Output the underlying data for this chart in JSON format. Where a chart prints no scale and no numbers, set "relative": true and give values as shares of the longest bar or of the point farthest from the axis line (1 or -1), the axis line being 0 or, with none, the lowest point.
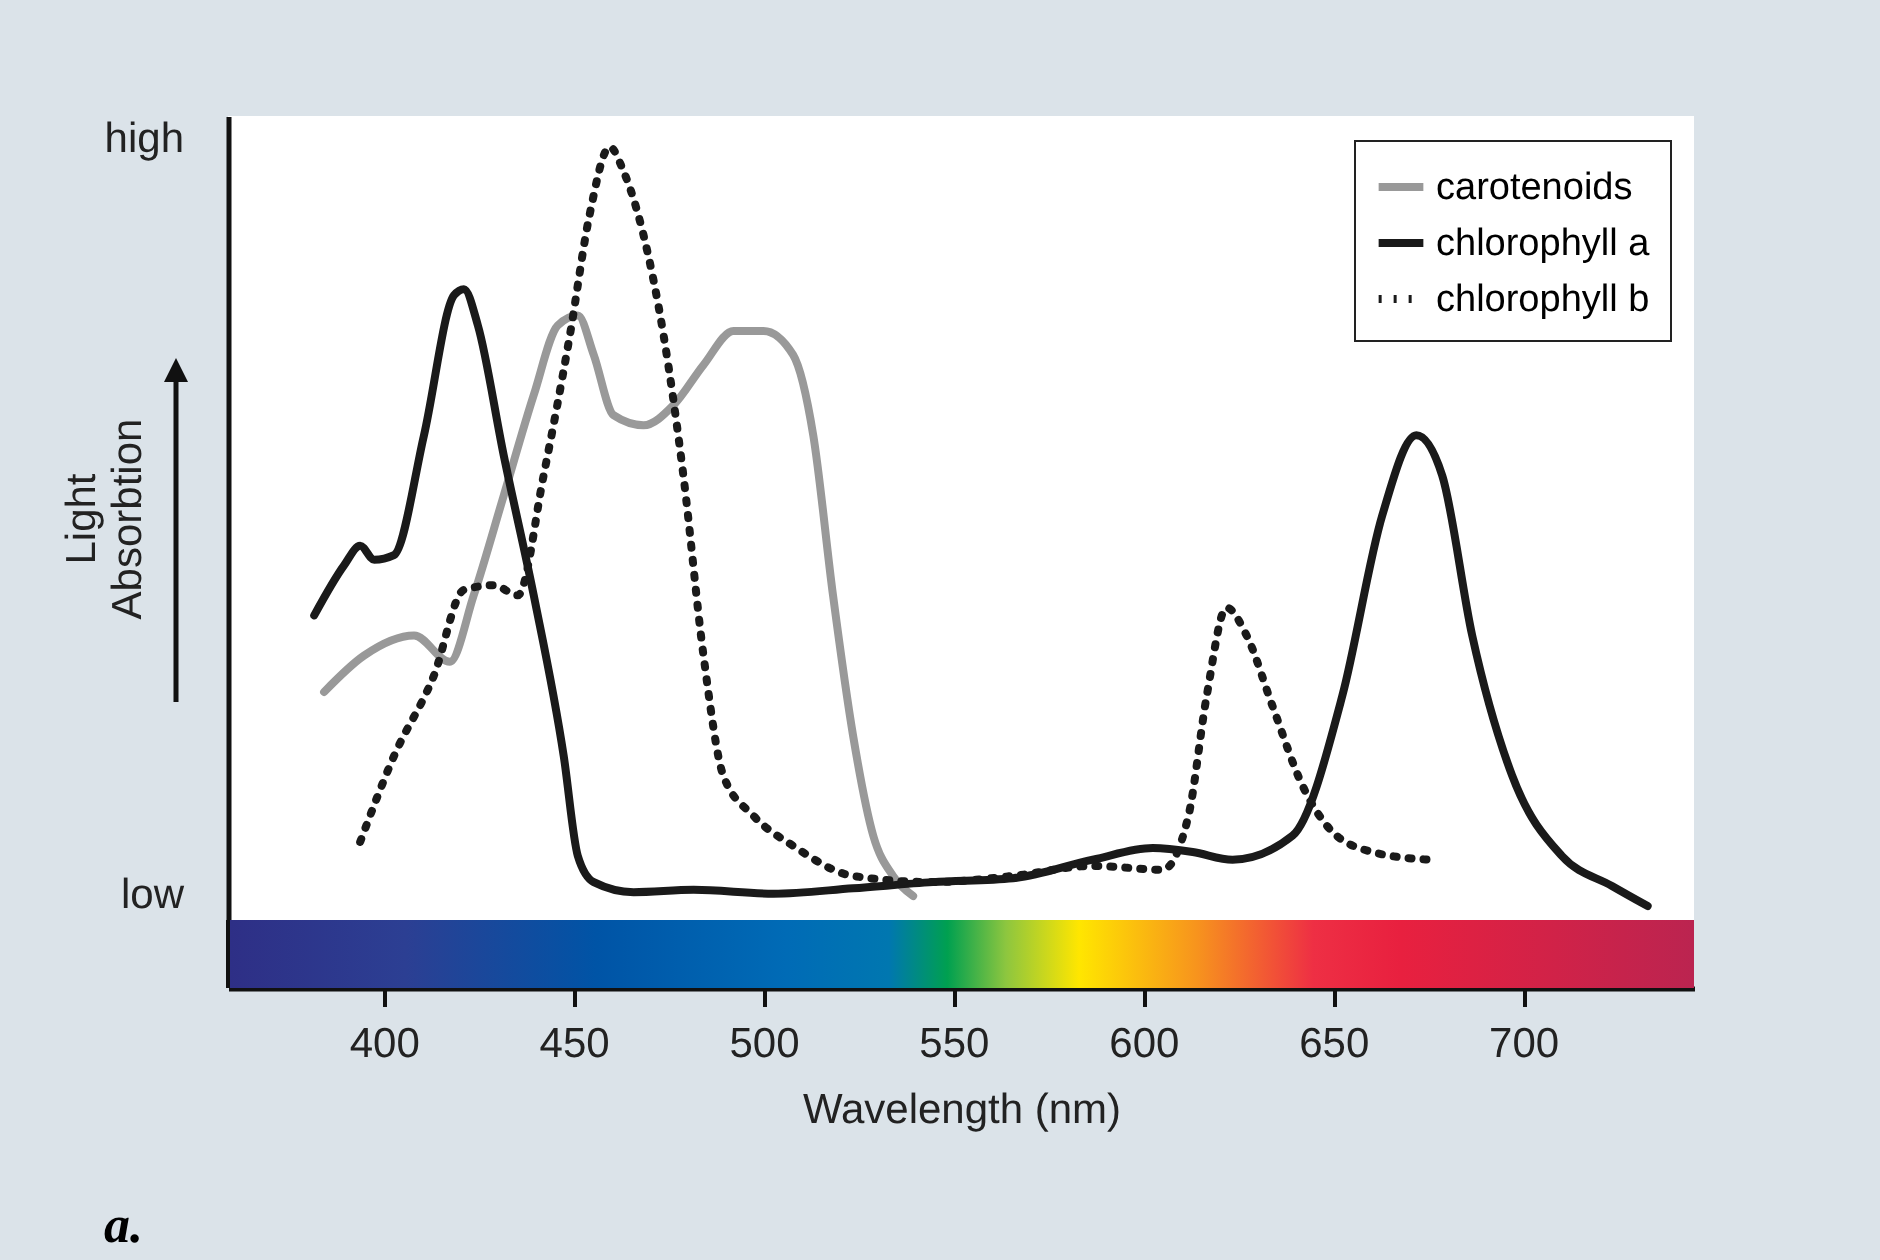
{
  "chart_data": {
    "type": "line",
    "relative": true,
    "xlabel": "Wavelength (nm)",
    "ylabel": "Light Absorbtion",
    "xlim": [
      359,
      745
    ],
    "xticks": [
      400,
      450,
      500,
      550,
      600,
      650,
      700
    ],
    "legend": "top right",
    "grid": false,
    "annotations": [
      "high",
      "low",
      "a."
    ],
    "series": [
      {
        "name": "carotenoids",
        "color": "#999999",
        "line_style": "solid",
        "x": [
          384.3,
          394.8,
          408.0,
          417.4,
          423.7,
          431.6,
          439.5,
          445.8,
          451.1,
          455.3,
          460.5,
          468.4,
          476.3,
          484.2,
          492.1,
          500.0,
          507.8,
          513.1,
          518.3,
          523.6,
          528.9,
          534.1,
          539.4
        ],
        "values": [
          0.295,
          0.342,
          0.368,
          0.334,
          0.42,
          0.549,
          0.679,
          0.769,
          0.782,
          0.731,
          0.653,
          0.64,
          0.666,
          0.718,
          0.762,
          0.762,
          0.731,
          0.627,
          0.42,
          0.238,
          0.109,
          0.057,
          0.031
        ]
      },
      {
        "name": "chlorophyll a",
        "color": "#1a1a1a",
        "line_style": "solid",
        "x": [
          381.7,
          389.6,
          393.8,
          397.5,
          402.7,
          410.6,
          418.5,
          421.1,
          424.8,
          431.6,
          439.5,
          447.4,
          451.1,
          455.3,
          465.8,
          481.6,
          502.6,
          523.6,
          544.6,
          565.7,
          586.7,
          602.5,
          613.0,
          623.5,
          639.3,
          652.4,
          662.9,
          671.9,
          678.7,
          686.6,
          697.1,
          710.2,
          723.4,
          732.8
        ],
        "values": [
          0.394,
          0.459,
          0.484,
          0.466,
          0.472,
          0.627,
          0.808,
          0.816,
          0.769,
          0.601,
          0.42,
          0.212,
          0.083,
          0.049,
          0.036,
          0.039,
          0.034,
          0.041,
          0.049,
          0.054,
          0.078,
          0.093,
          0.088,
          0.078,
          0.109,
          0.29,
          0.523,
          0.627,
          0.575,
          0.368,
          0.187,
          0.083,
          0.044,
          0.018
        ]
      },
      {
        "name": "chlorophyll b",
        "color": "#1a1a1a",
        "line_style": "dotted",
        "x": [
          393.8,
          402.7,
          413.2,
          421.1,
          429.0,
          435.3,
          442.1,
          449.0,
          454.2,
          459.5,
          463.1,
          468.4,
          473.7,
          478.9,
          484.2,
          489.4,
          497.3,
          507.8,
          523.6,
          544.6,
          565.7,
          586.7,
          605.1,
          611.9,
          616.7,
          621.9,
          627.2,
          634.0,
          641.9,
          649.8,
          660.3,
          675.0
        ],
        "values": [
          0.101,
          0.212,
          0.316,
          0.427,
          0.433,
          0.42,
          0.575,
          0.756,
          0.912,
          1.0,
          0.969,
          0.886,
          0.756,
          0.575,
          0.342,
          0.187,
          0.135,
          0.096,
          0.057,
          0.049,
          0.057,
          0.07,
          0.065,
          0.135,
          0.29,
          0.404,
          0.368,
          0.277,
          0.174,
          0.114,
          0.088,
          0.078
        ]
      }
    ]
  }
}
